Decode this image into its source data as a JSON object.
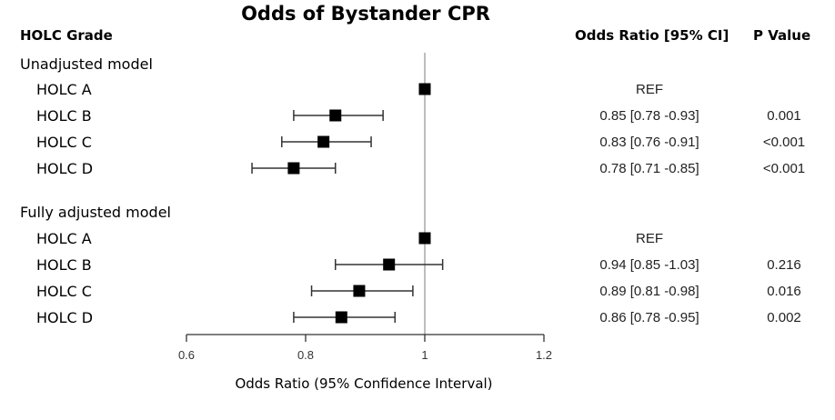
{
  "chart_data": {
    "type": "forest",
    "title": "Odds of Bystander CPR",
    "column_headers": {
      "grade": "HOLC Grade",
      "odds_ratio": "Odds Ratio [95% CI]",
      "p_value": "P Value"
    },
    "xlabel": "Odds Ratio (95% Confidence Interval)",
    "xlim": [
      0.6,
      1.2
    ],
    "xticks": [
      "0.6",
      "0.8",
      "1",
      "1.2"
    ],
    "reference_line": 1,
    "groups": [
      {
        "label": "Unadjusted model",
        "rows": [
          {
            "label": "HOLC A",
            "or": 1.0,
            "lo": null,
            "hi": null,
            "ci_text": "REF",
            "p": ""
          },
          {
            "label": "HOLC B",
            "or": 0.85,
            "lo": 0.78,
            "hi": 0.93,
            "ci_text": "0.85 [0.78 -0.93]",
            "p": "0.001"
          },
          {
            "label": "HOLC C",
            "or": 0.83,
            "lo": 0.76,
            "hi": 0.91,
            "ci_text": "0.83 [0.76 -0.91]",
            "p": "<0.001"
          },
          {
            "label": "HOLC D",
            "or": 0.78,
            "lo": 0.71,
            "hi": 0.85,
            "ci_text": "0.78 [0.71 -0.85]",
            "p": "<0.001"
          }
        ]
      },
      {
        "label": "Fully adjusted model",
        "rows": [
          {
            "label": "HOLC A",
            "or": 1.0,
            "lo": null,
            "hi": null,
            "ci_text": "REF",
            "p": ""
          },
          {
            "label": "HOLC B",
            "or": 0.94,
            "lo": 0.85,
            "hi": 1.03,
            "ci_text": "0.94 [0.85 -1.03]",
            "p": "0.216"
          },
          {
            "label": "HOLC C",
            "or": 0.89,
            "lo": 0.81,
            "hi": 0.98,
            "ci_text": "0.89 [0.81 -0.98]",
            "p": "0.016"
          },
          {
            "label": "HOLC D",
            "or": 0.86,
            "lo": 0.78,
            "hi": 0.95,
            "ci_text": "0.86 [0.78 -0.95]",
            "p": "0.002"
          }
        ]
      }
    ]
  }
}
